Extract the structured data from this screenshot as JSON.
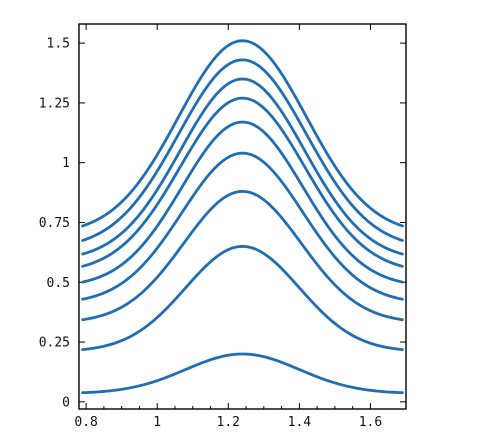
{
  "chart_data": {
    "type": "line",
    "title": "",
    "xlabel": "",
    "ylabel": "",
    "xlim": [
      0.78,
      1.7
    ],
    "ylim": [
      -0.03,
      1.58
    ],
    "x_ticks": [
      0.8,
      1,
      1.2,
      1.4,
      1.6
    ],
    "x_tick_labels": [
      "0.8",
      "1",
      "1.2",
      "1.4",
      "1.6"
    ],
    "y_ticks": [
      0,
      0.25,
      0.5,
      0.75,
      1,
      1.25,
      1.5
    ],
    "y_tick_labels": [
      "0",
      "0.25",
      "0.5",
      "0.75",
      "1",
      "1.25",
      "1.5"
    ],
    "grid": false,
    "legend": "none",
    "curve_shape": "gaussian",
    "x_range": [
      0.79,
      1.69
    ],
    "peak_x": 1.24,
    "color": "#1f6eb4",
    "series": [
      {
        "baseline": 0.035,
        "peak": 0.2,
        "width": 0.16
      },
      {
        "baseline": 0.21,
        "peak": 0.65,
        "width": 0.16
      },
      {
        "baseline": 0.33,
        "peak": 0.88,
        "width": 0.165
      },
      {
        "baseline": 0.41,
        "peak": 1.04,
        "width": 0.17
      },
      {
        "baseline": 0.48,
        "peak": 1.17,
        "width": 0.17
      },
      {
        "baseline": 0.54,
        "peak": 1.27,
        "width": 0.175
      },
      {
        "baseline": 0.59,
        "peak": 1.35,
        "width": 0.175
      },
      {
        "baseline": 0.64,
        "peak": 1.43,
        "width": 0.18
      },
      {
        "baseline": 0.7,
        "peak": 1.51,
        "width": 0.18
      }
    ]
  }
}
